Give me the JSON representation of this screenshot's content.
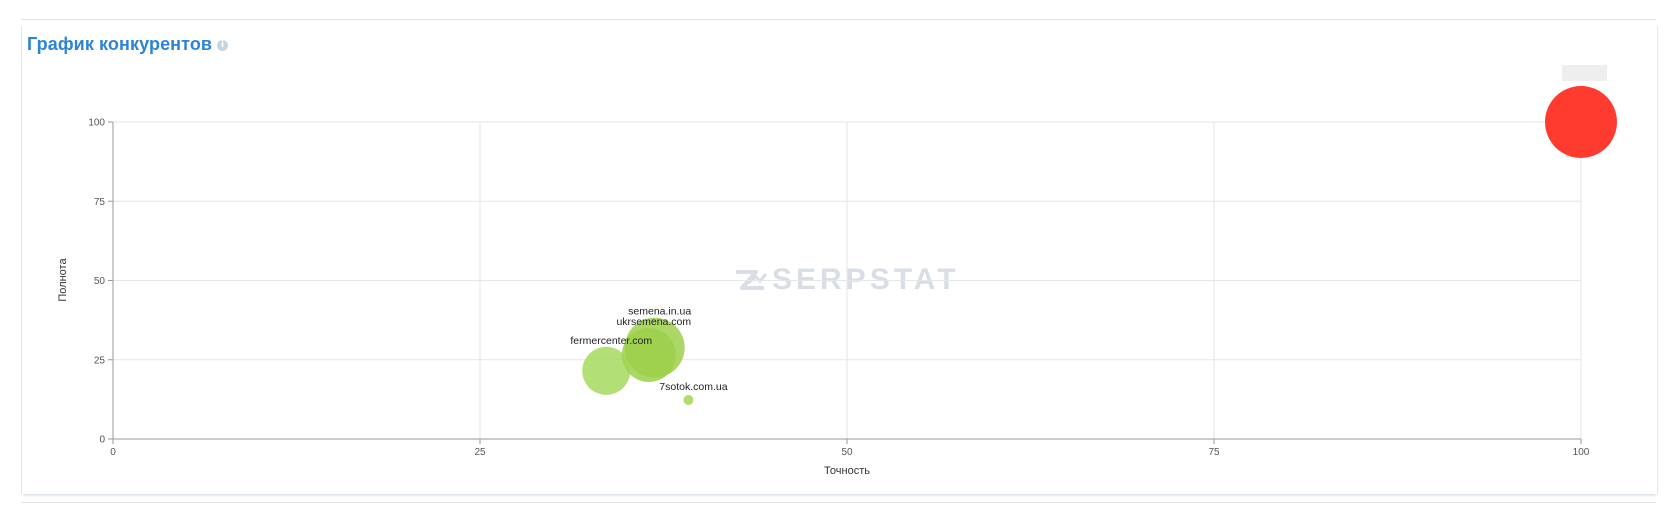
{
  "panel": {
    "title": "График конкурентов",
    "info_icon": "info-icon"
  },
  "watermark": {
    "text": "SERPSTAT",
    "icon": "serpstat-logo-icon"
  },
  "chart_data": {
    "type": "scatter",
    "xlabel": "Точность",
    "ylabel": "Полнота",
    "xlim": [
      0,
      100
    ],
    "ylim": [
      0,
      100
    ],
    "x_ticks": [
      "0",
      "25",
      "50",
      "75",
      "100"
    ],
    "y_ticks": [
      "0",
      "25",
      "50",
      "75",
      "100"
    ],
    "grid": true,
    "legend": "top-right",
    "points": [
      {
        "label": "fermercenter.com",
        "x": 33.6,
        "y": 21.5,
        "size": 24,
        "color": "#a6d95f",
        "opacity": 0.85
      },
      {
        "label": "ukrsemena.com",
        "x": 36.5,
        "y": 26.5,
        "size": 27,
        "color": "#a0d454",
        "opacity": 0.9
      },
      {
        "label": "semena.in.ua",
        "x": 36.9,
        "y": 28.8,
        "size": 30,
        "color": "#9ed04b",
        "opacity": 0.85
      },
      {
        "label": "7sotok.com.ua",
        "x": 39.2,
        "y": 12.3,
        "size": 5,
        "color": "#a6d95f",
        "opacity": 0.9
      },
      {
        "label": "",
        "x": 100,
        "y": 100,
        "size": 36,
        "color": "#ff3b2f",
        "opacity": 1
      }
    ]
  }
}
